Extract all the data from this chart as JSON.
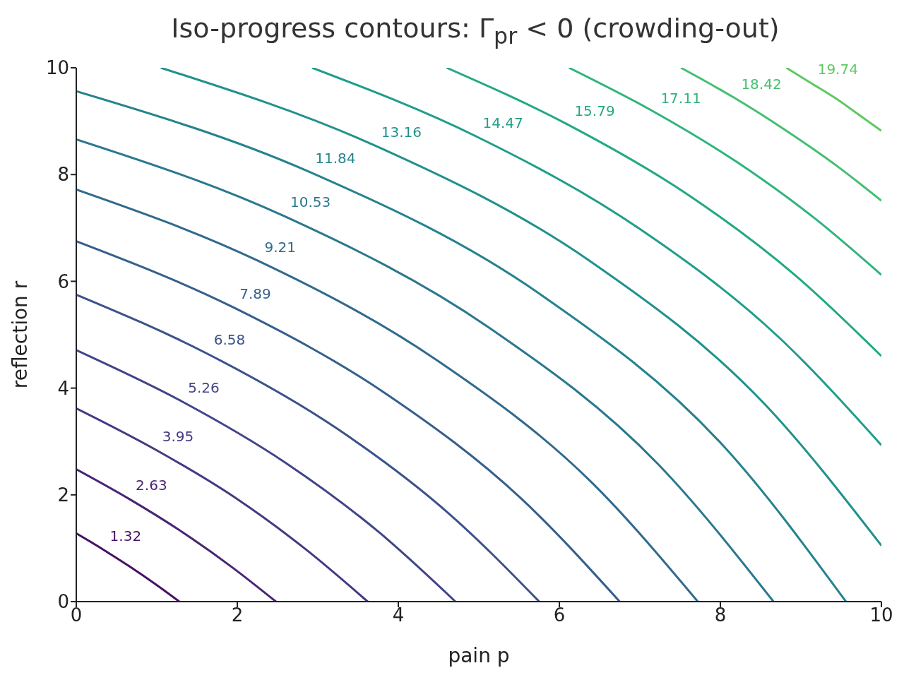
{
  "chart_data": {
    "type": "line",
    "title": "Iso-progress contours: Γ$_{pr}$ < 0 (crowding-out)",
    "xlabel": "pain p",
    "ylabel": "reflection r",
    "xlim": [
      0,
      10
    ],
    "ylim": [
      0,
      10
    ],
    "xticks": [
      0,
      2,
      4,
      6,
      8,
      10
    ],
    "yticks": [
      0,
      2,
      4,
      6,
      8,
      10
    ],
    "grid": false,
    "legend": false,
    "marker": "none",
    "line_style": "solid",
    "series": [
      {
        "name": "1.32",
        "color": "#471164",
        "x": [
          0,
          0.33,
          0.66,
          0.98,
          1.28
        ],
        "values": [
          1.28,
          0.98,
          0.66,
          0.33,
          0
        ]
      },
      {
        "name": "2.63",
        "color": "#482475",
        "x": [
          0,
          0.65,
          1.31,
          1.93,
          2.48
        ],
        "values": [
          2.48,
          1.93,
          1.31,
          0.65,
          0
        ]
      },
      {
        "name": "3.95",
        "color": "#443983",
        "x": [
          0,
          0.98,
          1.96,
          2.85,
          3.62
        ],
        "values": [
          3.62,
          2.85,
          1.96,
          0.98,
          0
        ]
      },
      {
        "name": "5.26",
        "color": "#414487",
        "x": [
          0,
          1.3,
          2.6,
          3.76,
          4.71
        ],
        "values": [
          4.71,
          3.76,
          2.6,
          1.3,
          0
        ]
      },
      {
        "name": "6.58",
        "color": "#3b528b",
        "x": [
          0,
          1.62,
          3.24,
          4.65,
          5.75
        ],
        "values": [
          5.75,
          4.65,
          3.24,
          1.62,
          0
        ]
      },
      {
        "name": "7.89",
        "color": "#355f8d",
        "x": [
          0,
          1.94,
          3.87,
          5.52,
          6.75
        ],
        "values": [
          6.75,
          5.52,
          3.87,
          1.94,
          0
        ]
      },
      {
        "name": "9.21",
        "color": "#306a8e",
        "x": [
          0,
          2.25,
          4.5,
          6.39,
          7.72
        ],
        "values": [
          7.72,
          6.39,
          4.5,
          2.25,
          0
        ]
      },
      {
        "name": "10.53",
        "color": "#2a788e",
        "x": [
          0,
          2.57,
          5.13,
          7.23,
          8.66
        ],
        "values": [
          8.66,
          7.23,
          5.13,
          2.57,
          0
        ]
      },
      {
        "name": "11.84",
        "color": "#25838e",
        "x": [
          0,
          2.88,
          5.76,
          8.06,
          9.56
        ],
        "values": [
          9.56,
          8.06,
          5.76,
          2.88,
          0
        ]
      },
      {
        "name": "13.16",
        "color": "#21918c",
        "x": [
          1.05,
          3.7,
          6.38,
          8.55,
          10
        ],
        "values": [
          10,
          8.55,
          6.38,
          3.7,
          1.05
        ]
      },
      {
        "name": "14.47",
        "color": "#1f9e89",
        "x": [
          2.93,
          4.96,
          6.99,
          8.72,
          10
        ],
        "values": [
          10,
          8.72,
          6.99,
          4.96,
          2.93
        ]
      },
      {
        "name": "15.79",
        "color": "#22a884",
        "x": [
          4.6,
          6.1,
          7.61,
          8.94,
          10
        ],
        "values": [
          10,
          8.94,
          7.61,
          6.1,
          4.6
        ]
      },
      {
        "name": "17.11",
        "color": "#2fb47c",
        "x": [
          6.12,
          7.17,
          8.22,
          9.18,
          10
        ],
        "values": [
          10,
          9.18,
          8.22,
          7.17,
          6.12
        ]
      },
      {
        "name": "18.42",
        "color": "#44bf70",
        "x": [
          7.51,
          8.17,
          8.82,
          9.44,
          10
        ],
        "values": [
          10,
          9.44,
          8.82,
          8.17,
          7.51
        ]
      },
      {
        "name": "19.74",
        "color": "#5ec962",
        "x": [
          8.82,
          9.12,
          9.43,
          9.72,
          10
        ],
        "values": [
          10,
          9.72,
          9.43,
          9.12,
          8.82
        ]
      }
    ]
  }
}
